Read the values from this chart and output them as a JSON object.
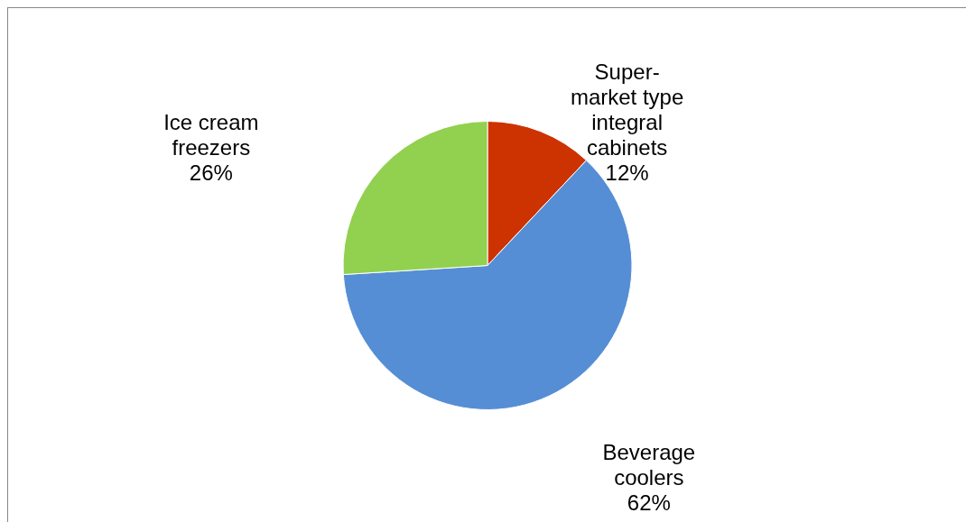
{
  "chart_data": {
    "type": "pie",
    "categories": [
      "Super-market type integral cabinets",
      "Beverage coolers",
      "Ice cream freezers"
    ],
    "values": [
      12,
      62,
      26
    ],
    "value_labels": [
      "12%",
      "62%",
      "26%"
    ],
    "colors": [
      "#cc3300",
      "#558ed5",
      "#92d050"
    ]
  }
}
